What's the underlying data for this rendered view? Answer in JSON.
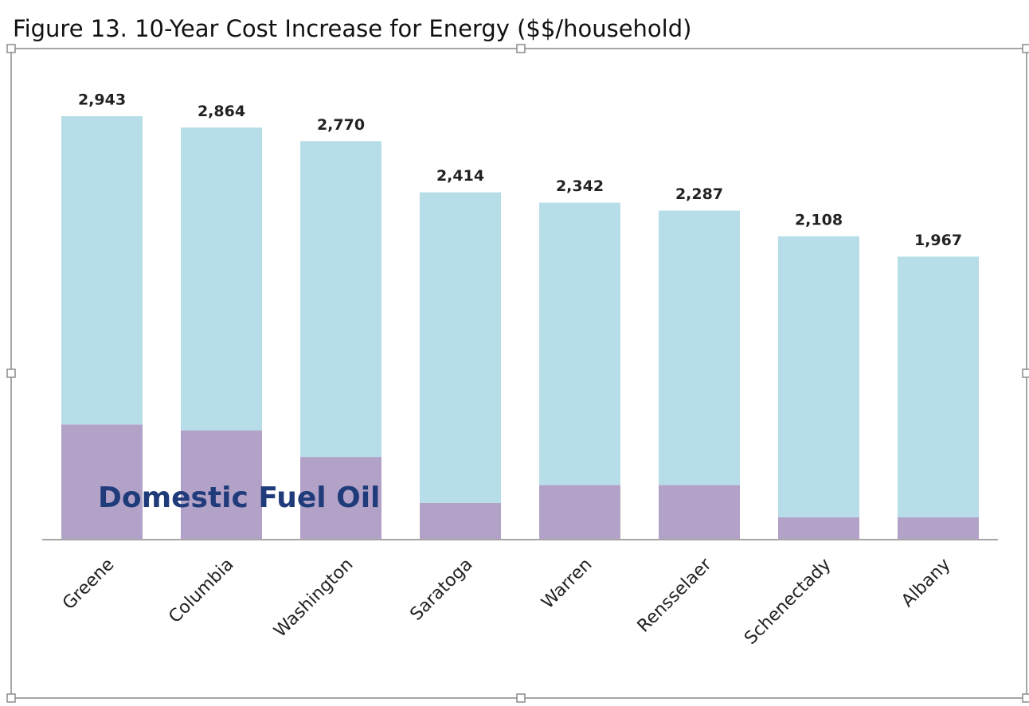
{
  "chart_data": {
    "type": "stacked_bar",
    "title": "Figure 13.  10-Year Cost Increase for Energy ($$/household)",
    "categories": [
      "Greene",
      "Columbia",
      "Washington",
      "Saratoga",
      "Warren",
      "Rensselaer",
      "Schenectady",
      "Albany"
    ],
    "series": [
      {
        "name": "Domestic Fuel Oil",
        "color": "#b3a2c7",
        "values": [
          800,
          760,
          575,
          255,
          380,
          380,
          155,
          155
        ]
      },
      {
        "color": "#b7dde8",
        "values": [
          2143,
          2104,
          2195,
          2159,
          1962,
          1907,
          1953,
          1812
        ]
      }
    ],
    "totals": [
      2943,
      2864,
      2770,
      2414,
      2342,
      2287,
      2108,
      1967
    ],
    "total_labels": [
      "2,943",
      "2,864",
      "2,770",
      "2,414",
      "2,342",
      "2,287",
      "2,108",
      "1,967"
    ]
  }
}
